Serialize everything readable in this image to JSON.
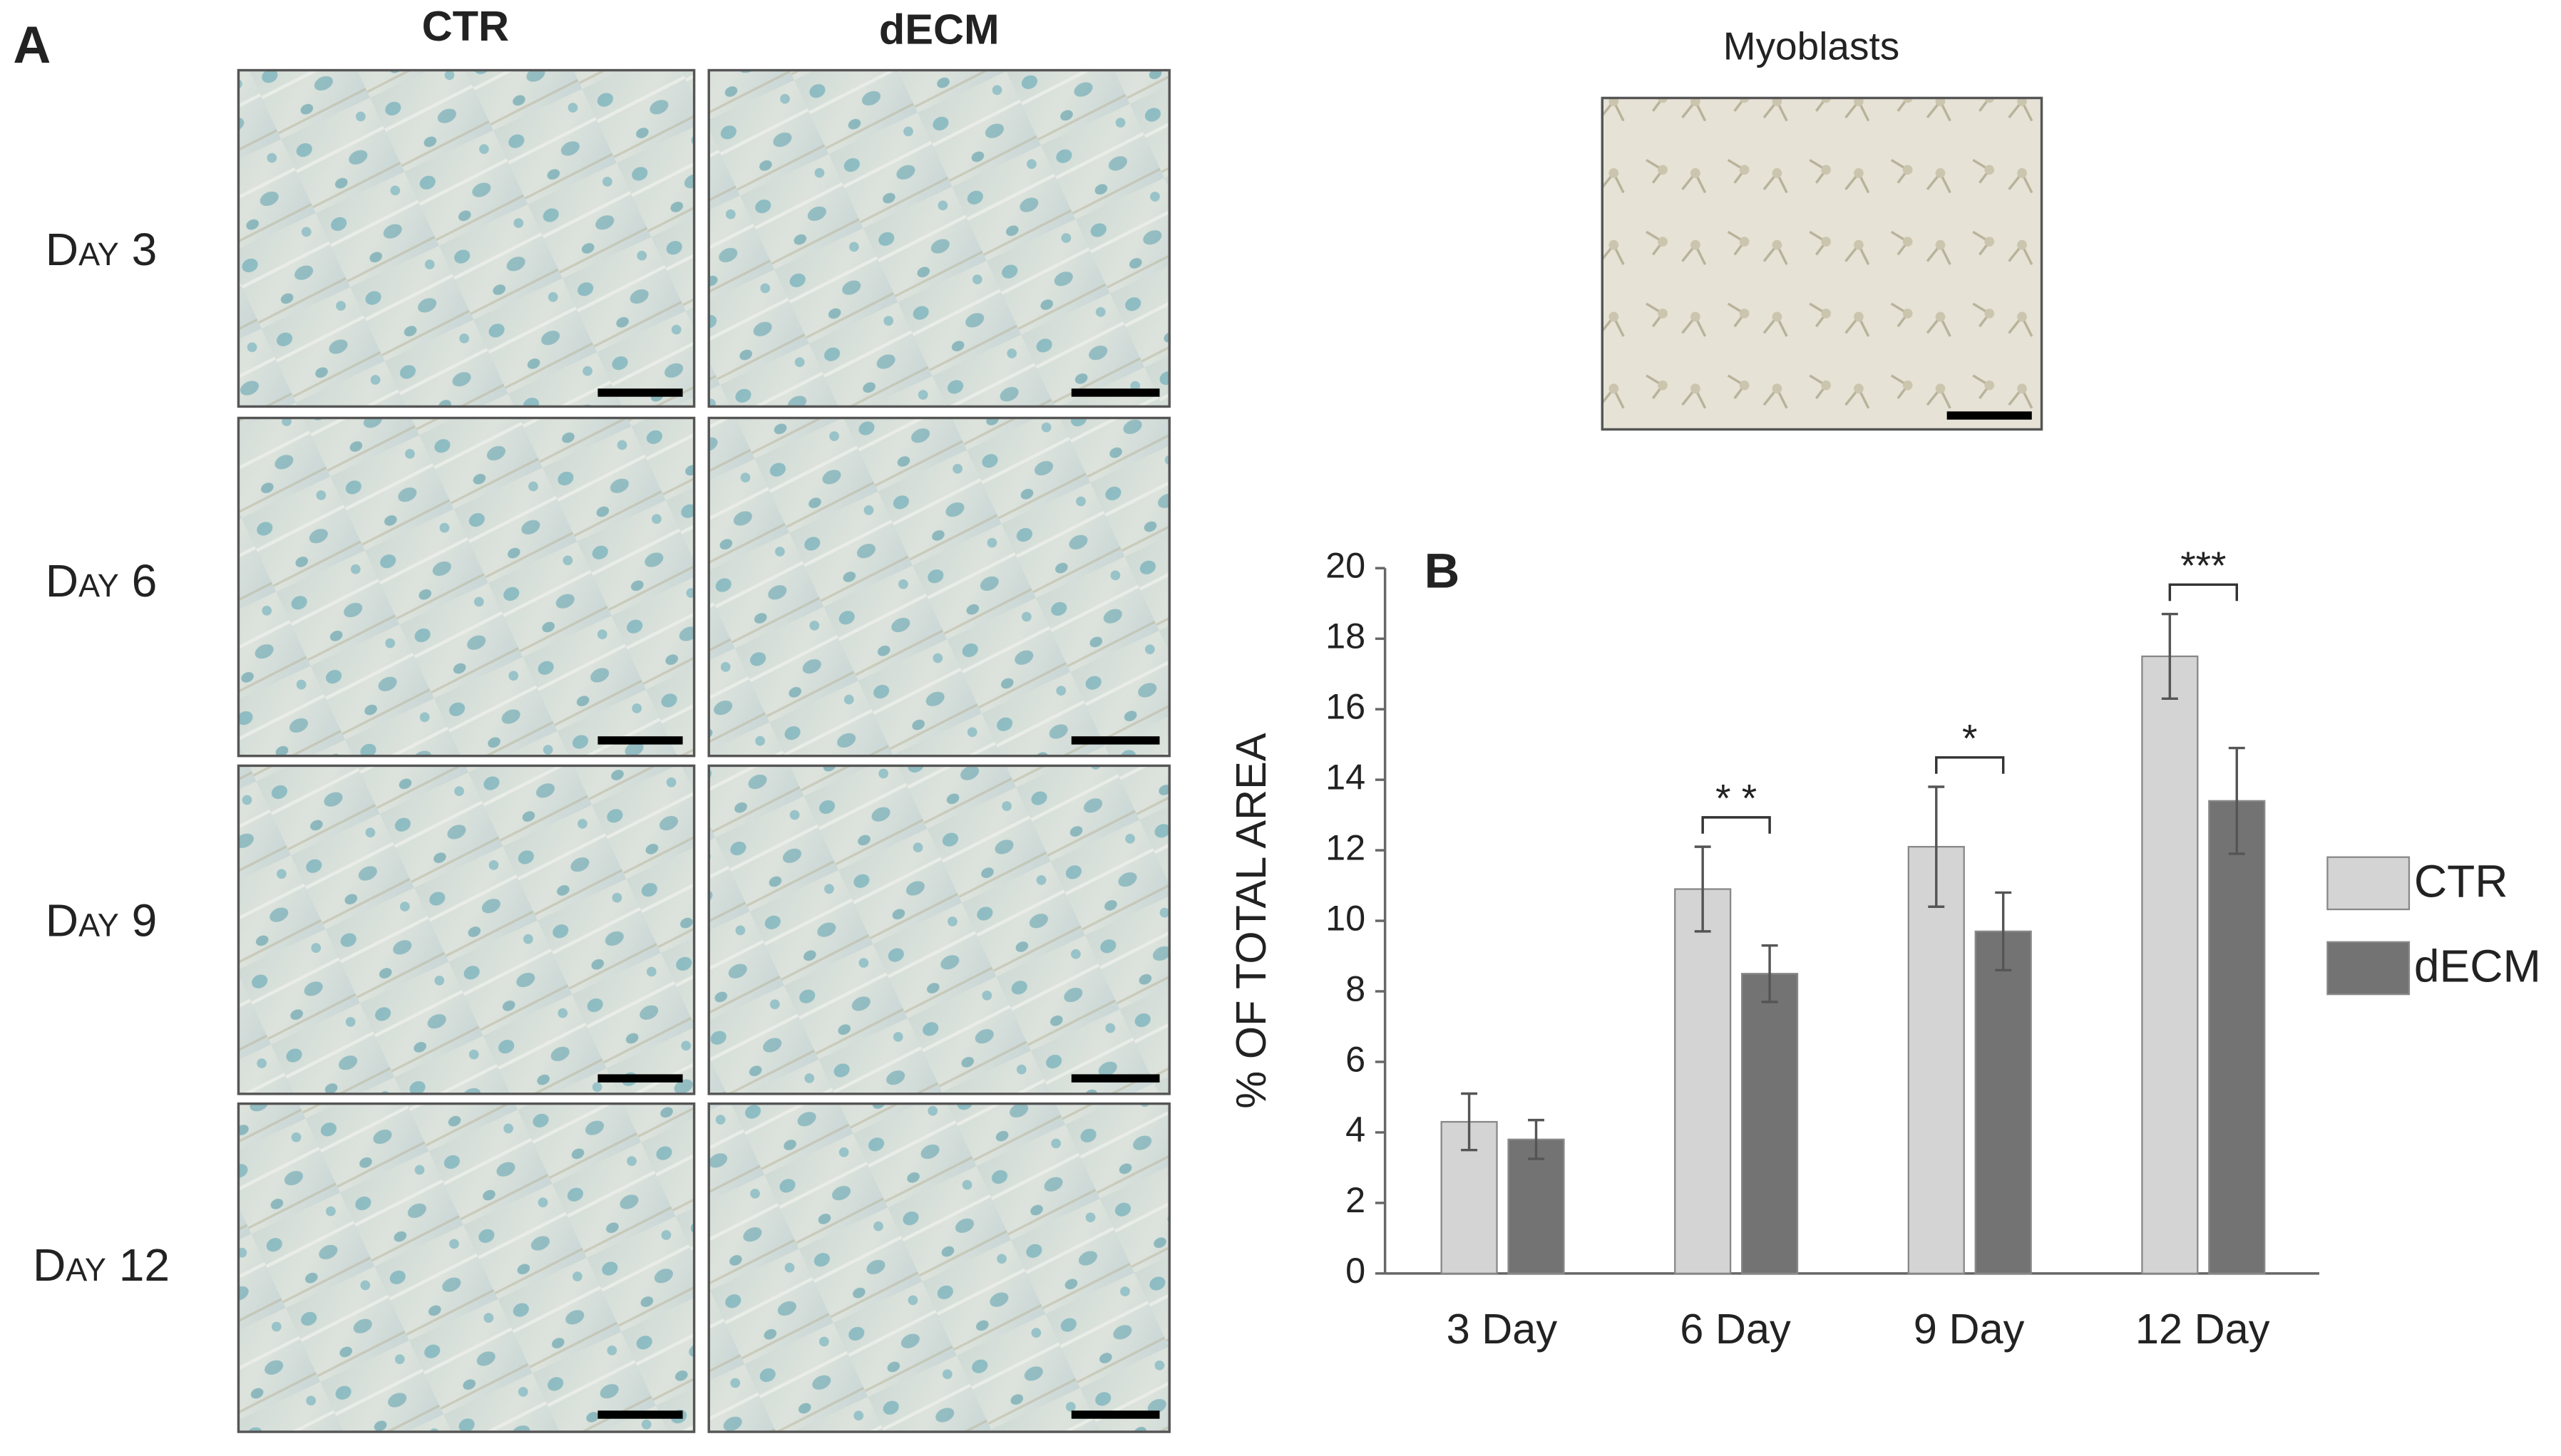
{
  "figure": {
    "panel_a": {
      "label": "A",
      "columns": [
        "CTR",
        "dECM"
      ],
      "rows": [
        "Day 3",
        "Day 6",
        "Day 9",
        "Day 12"
      ],
      "inset_title": "Myoblasts"
    }
  },
  "chart_data": {
    "type": "bar",
    "panel_label": "B",
    "ylabel": "% OF TOTAL AREA",
    "categories": [
      "3 Day",
      "6 Day",
      "9 Day",
      "12 Day"
    ],
    "series": [
      {
        "name": "CTR",
        "color": "#d4d4d4",
        "values": [
          4.3,
          10.9,
          12.1,
          17.5
        ],
        "errors": [
          0.8,
          1.2,
          1.7,
          1.2
        ]
      },
      {
        "name": "dECM",
        "color": "#737373",
        "values": [
          3.8,
          8.5,
          9.7,
          13.4
        ],
        "errors": [
          0.55,
          0.8,
          1.1,
          1.5
        ]
      }
    ],
    "annotations": [
      null,
      "* *",
      "*",
      "***"
    ],
    "ylim": [
      0,
      20
    ],
    "yticks": [
      0,
      2,
      4,
      6,
      8,
      10,
      12,
      14,
      16,
      18,
      20
    ],
    "grid": false,
    "legend": "right"
  }
}
